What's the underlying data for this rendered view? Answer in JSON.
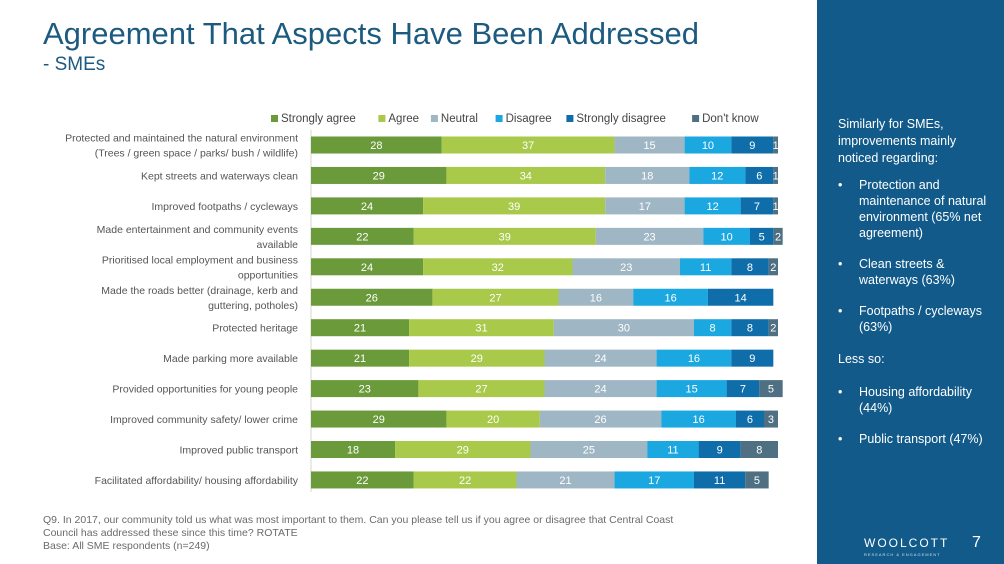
{
  "title": "Agreement That Aspects Have Been Addressed",
  "subtitle": "- SMEs",
  "chart_data": {
    "type": "bar",
    "orientation": "horizontal",
    "stacked": true,
    "legend_position": "top",
    "categories": [
      "Protected and maintained the natural environment (Trees / green space / parks/ bush / wildlife)",
      "Kept streets and waterways clean",
      "Improved footpaths / cycleways",
      "Made entertainment and community events available",
      "Prioritised local employment and business opportunities",
      "Made the roads better (drainage, kerb and guttering, potholes)",
      "Protected heritage",
      "Made parking more available",
      "Provided opportunities for young people",
      "Improved community safety/ lower crime",
      "Improved public transport",
      "Facilitated affordability/ housing affordability"
    ],
    "category_lines": [
      [
        "Protected and maintained the natural environment",
        "(Trees / green space / parks/ bush / wildlife)"
      ],
      [
        "Kept streets and waterways clean"
      ],
      [
        "Improved footpaths / cycleways"
      ],
      [
        "Made entertainment and community events",
        "available"
      ],
      [
        "Prioritised local employment and business",
        "opportunities"
      ],
      [
        "Made the roads better (drainage, kerb and",
        "guttering, potholes)"
      ],
      [
        "Protected heritage"
      ],
      [
        "Made parking more available"
      ],
      [
        "Provided opportunities for young people"
      ],
      [
        "Improved community safety/ lower crime"
      ],
      [
        "Improved public transport"
      ],
      [
        "Facilitated affordability/ housing affordability"
      ]
    ],
    "series": [
      {
        "name": "Strongly agree",
        "color": "#6a9a3a",
        "values": [
          28,
          29,
          24,
          22,
          24,
          26,
          21,
          21,
          23,
          29,
          18,
          22
        ]
      },
      {
        "name": "Agree",
        "color": "#a9c94a",
        "values": [
          37,
          34,
          39,
          39,
          32,
          27,
          31,
          29,
          27,
          20,
          29,
          22
        ]
      },
      {
        "name": "Neutral",
        "color": "#9fb6c4",
        "values": [
          15,
          18,
          17,
          23,
          23,
          16,
          30,
          24,
          24,
          26,
          25,
          21
        ]
      },
      {
        "name": "Disagree",
        "color": "#1ba7e0",
        "values": [
          10,
          12,
          12,
          10,
          11,
          16,
          8,
          16,
          15,
          16,
          11,
          17
        ]
      },
      {
        "name": "Strongly disagree",
        "color": "#0f6eaa",
        "values": [
          9,
          6,
          7,
          5,
          8,
          14,
          8,
          9,
          7,
          6,
          9,
          11
        ]
      },
      {
        "name": "Don't know",
        "color": "#4f6f82",
        "values": [
          1,
          1,
          1,
          2,
          2,
          0,
          2,
          0,
          5,
          3,
          8,
          5
        ]
      }
    ],
    "data_label_color": "#ffffff",
    "xlim": [
      0,
      100
    ]
  },
  "footnote": [
    "Q9. In 2017, our community told us what was most important to them. Can you please tell us if you agree or disagree that Central Coast",
    "Council has addressed these since this time? ROTATE",
    "Base: All SME respondents (n=249)"
  ],
  "side_panel": {
    "intro": "Similarly for SMEs, improvements mainly noticed regarding:",
    "bullet_glyph": "•",
    "mainly": [
      "Protection and maintenance of natural environment  (65% net agreement)",
      "Clean streets & waterways (63%)",
      "Footpaths / cycleways (63%)"
    ],
    "less_so_label": "Less so:",
    "less_so": [
      "Housing affordability (44%)",
      "Public transport (47%)"
    ],
    "logo_text": "WOOLCOTT",
    "logo_sub": "RESEARCH & ENGAGEMENT",
    "page_number": "7",
    "background_color": "#115a8a"
  }
}
